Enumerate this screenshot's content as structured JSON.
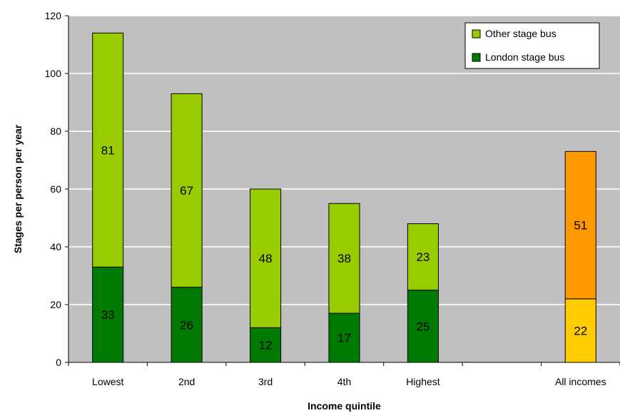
{
  "chart_data": {
    "type": "bar",
    "stacked": true,
    "categories": [
      "Lowest",
      "2nd",
      "3rd",
      "4th",
      "Highest",
      "",
      "All incomes"
    ],
    "series": [
      {
        "name": "London stage bus",
        "values": [
          33,
          26,
          12,
          17,
          25,
          null,
          22
        ],
        "color": "#007a00"
      },
      {
        "name": "Other stage bus",
        "values": [
          81,
          67,
          48,
          38,
          23,
          null,
          51
        ],
        "color": "#99cc00"
      }
    ],
    "highlight": {
      "category": "All incomes",
      "colors": [
        "#ffcc00",
        "#ff9900"
      ]
    },
    "xlabel": "Income quintile",
    "ylabel": "Stages per person per year",
    "ylim": [
      0,
      120
    ],
    "yticks": [
      0,
      20,
      40,
      60,
      80,
      100,
      120
    ],
    "grid": true,
    "legend_position": "top-right",
    "legend_order": [
      "Other stage bus",
      "London stage bus"
    ],
    "plot_background": "#c0c0c0"
  }
}
